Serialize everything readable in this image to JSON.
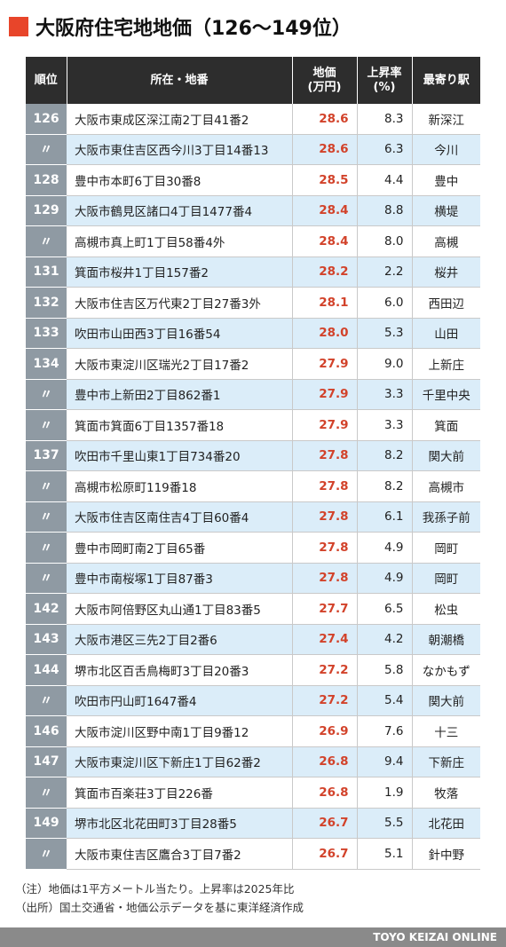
{
  "title": "大阪府住宅地地価（126〜149位）",
  "table": {
    "headers": {
      "rank": "順位",
      "address": "所在・地番",
      "price_line1": "地価",
      "price_line2": "(万円)",
      "rate_line1": "上昇率",
      "rate_line2": "(%)",
      "station": "最寄り駅"
    },
    "rows": [
      {
        "rank": "126",
        "address": "大阪市東成区深江南2丁目41番2",
        "price": "28.6",
        "rate": "8.3",
        "station": "新深江"
      },
      {
        "rank": "〃",
        "address": "大阪市東住吉区西今川3丁目14番13",
        "price": "28.6",
        "rate": "6.3",
        "station": "今川"
      },
      {
        "rank": "128",
        "address": "豊中市本町6丁目30番8",
        "price": "28.5",
        "rate": "4.4",
        "station": "豊中"
      },
      {
        "rank": "129",
        "address": "大阪市鶴見区諸口4丁目1477番4",
        "price": "28.4",
        "rate": "8.8",
        "station": "横堤"
      },
      {
        "rank": "〃",
        "address": "高槻市真上町1丁目58番4外",
        "price": "28.4",
        "rate": "8.0",
        "station": "高槻"
      },
      {
        "rank": "131",
        "address": "箕面市桜井1丁目157番2",
        "price": "28.2",
        "rate": "2.2",
        "station": "桜井"
      },
      {
        "rank": "132",
        "address": "大阪市住吉区万代東2丁目27番3外",
        "price": "28.1",
        "rate": "6.0",
        "station": "西田辺"
      },
      {
        "rank": "133",
        "address": "吹田市山田西3丁目16番54",
        "price": "28.0",
        "rate": "5.3",
        "station": "山田"
      },
      {
        "rank": "134",
        "address": "大阪市東淀川区瑞光2丁目17番2",
        "price": "27.9",
        "rate": "9.0",
        "station": "上新庄"
      },
      {
        "rank": "〃",
        "address": "豊中市上新田2丁目862番1",
        "price": "27.9",
        "rate": "3.3",
        "station": "千里中央"
      },
      {
        "rank": "〃",
        "address": "箕面市箕面6丁目1357番18",
        "price": "27.9",
        "rate": "3.3",
        "station": "箕面"
      },
      {
        "rank": "137",
        "address": "吹田市千里山東1丁目734番20",
        "price": "27.8",
        "rate": "8.2",
        "station": "関大前"
      },
      {
        "rank": "〃",
        "address": "高槻市松原町119番18",
        "price": "27.8",
        "rate": "8.2",
        "station": "高槻市"
      },
      {
        "rank": "〃",
        "address": "大阪市住吉区南住吉4丁目60番4",
        "price": "27.8",
        "rate": "6.1",
        "station": "我孫子前"
      },
      {
        "rank": "〃",
        "address": "豊中市岡町南2丁目65番",
        "price": "27.8",
        "rate": "4.9",
        "station": "岡町"
      },
      {
        "rank": "〃",
        "address": "豊中市南桜塚1丁目87番3",
        "price": "27.8",
        "rate": "4.9",
        "station": "岡町"
      },
      {
        "rank": "142",
        "address": "大阪市阿倍野区丸山通1丁目83番5",
        "price": "27.7",
        "rate": "6.5",
        "station": "松虫"
      },
      {
        "rank": "143",
        "address": "大阪市港区三先2丁目2番6",
        "price": "27.4",
        "rate": "4.2",
        "station": "朝潮橋"
      },
      {
        "rank": "144",
        "address": "堺市北区百舌鳥梅町3丁目20番3",
        "price": "27.2",
        "rate": "5.8",
        "station": "なかもず"
      },
      {
        "rank": "〃",
        "address": "吹田市円山町1647番4",
        "price": "27.2",
        "rate": "5.4",
        "station": "関大前"
      },
      {
        "rank": "146",
        "address": "大阪市淀川区野中南1丁目9番12",
        "price": "26.9",
        "rate": "7.6",
        "station": "十三"
      },
      {
        "rank": "147",
        "address": "大阪市東淀川区下新庄1丁目62番2",
        "price": "26.8",
        "rate": "9.4",
        "station": "下新庄"
      },
      {
        "rank": "〃",
        "address": "箕面市百楽荘3丁目226番",
        "price": "26.8",
        "rate": "1.9",
        "station": "牧落"
      },
      {
        "rank": "149",
        "address": "堺市北区北花田町3丁目28番5",
        "price": "26.7",
        "rate": "5.5",
        "station": "北花田"
      },
      {
        "rank": "〃",
        "address": "大阪市東住吉区鷹合3丁目7番2",
        "price": "26.7",
        "rate": "5.1",
        "station": "針中野"
      }
    ]
  },
  "notes": {
    "note1": "（注）地価は1平方メートル当たり。上昇率は2025年比",
    "note2": "（出所）国土交通省・地価公示データを基に東洋経済作成"
  },
  "footer": "TOYO KEIZAI ONLINE",
  "colors": {
    "accent": "#e8452a",
    "header_bg": "#2d2d2d",
    "rank_bg": "#8f9aa3",
    "row_alt": "#dbedf9",
    "price_text": "#d2422a",
    "footer_bg": "#8a8a8a"
  }
}
